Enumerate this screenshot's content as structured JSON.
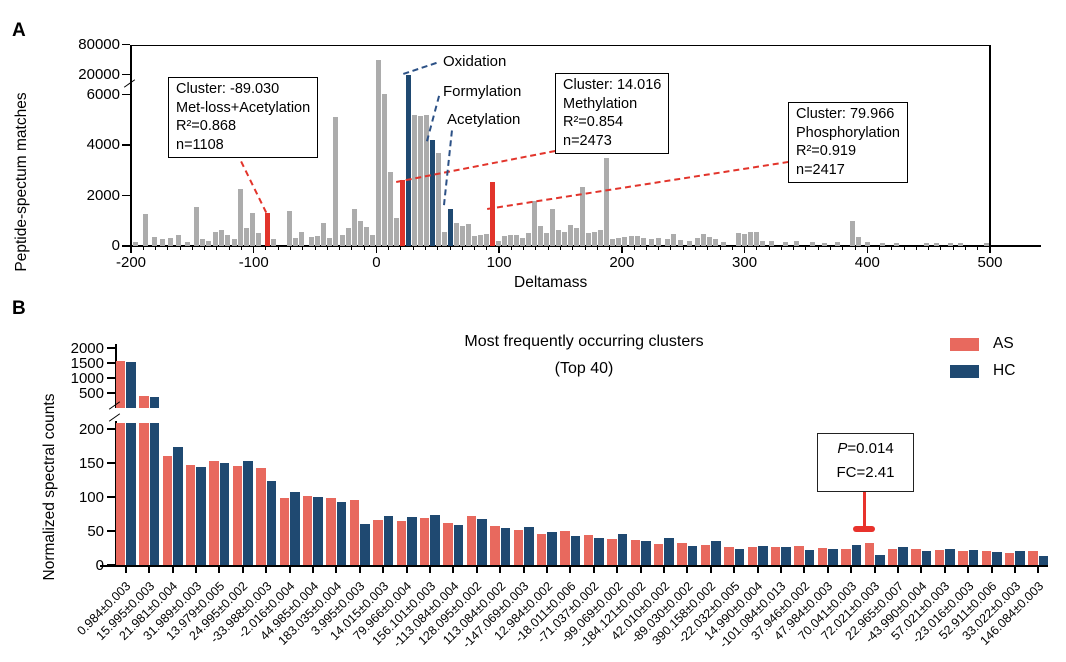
{
  "figure": {
    "panel_a_label": "A",
    "panel_b_label": "B"
  },
  "chart_data": [
    {
      "id": "deltamass-histogram",
      "type": "bar",
      "xlabel": "Deltamass",
      "ylabel": "Peptide-spectum matches",
      "xlim": [
        -200,
        500
      ],
      "xticks": [
        -200,
        -100,
        0,
        100,
        200,
        300,
        400,
        500
      ],
      "yticks": [
        0,
        2000,
        4000,
        6000,
        20000,
        80000
      ],
      "y_axis_break": true,
      "grid": false,
      "bar_color_default": "#ACACAC",
      "bar_colors": {
        "r": "#E2342B",
        "b": "#1F4971"
      },
      "bars": [
        [
          -196,
          150
        ],
        [
          -188,
          1250
        ],
        [
          -181,
          350
        ],
        [
          -174,
          280
        ],
        [
          -168,
          300
        ],
        [
          -161,
          430
        ],
        [
          -154,
          160
        ],
        [
          -147,
          1550
        ],
        [
          -143,
          260
        ],
        [
          -138,
          200
        ],
        [
          -131,
          560
        ],
        [
          -127,
          620
        ],
        [
          -122,
          420
        ],
        [
          -116,
          260
        ],
        [
          -111,
          2250
        ],
        [
          -107,
          700
        ],
        [
          -101,
          1300
        ],
        [
          -97,
          520
        ],
        [
          -89,
          1300,
          "r"
        ],
        [
          -84,
          260
        ],
        [
          -71,
          1400
        ],
        [
          -66,
          300
        ],
        [
          -62,
          560
        ],
        [
          -53,
          350
        ],
        [
          -48,
          380
        ],
        [
          -44,
          900
        ],
        [
          -40,
          300
        ],
        [
          -34,
          5100
        ],
        [
          -28,
          420
        ],
        [
          -24,
          700
        ],
        [
          -18,
          1450
        ],
        [
          -14,
          1000
        ],
        [
          -10,
          760
        ],
        [
          -5,
          420
        ],
        [
          -1,
          49000
        ],
        [
          4,
          6300
        ],
        [
          8,
          2950
        ],
        [
          11,
          1100
        ],
        [
          14,
          2600,
          "r"
        ],
        [
          16,
          20000,
          "b"
        ],
        [
          19,
          5200
        ],
        [
          22,
          5150
        ],
        [
          25,
          5200
        ],
        [
          28,
          4200,
          "b"
        ],
        [
          32,
          3700
        ],
        [
          38,
          560
        ],
        [
          42,
          1450,
          "b"
        ],
        [
          48,
          900
        ],
        [
          52,
          800
        ],
        [
          57,
          880
        ],
        [
          60,
          380
        ],
        [
          66,
          450
        ],
        [
          70,
          480
        ],
        [
          80,
          2550,
          "r"
        ],
        [
          86,
          210
        ],
        [
          90,
          380
        ],
        [
          94,
          430
        ],
        [
          98,
          430
        ],
        [
          102,
          310
        ],
        [
          108,
          520
        ],
        [
          113,
          1800
        ],
        [
          117,
          800
        ],
        [
          121,
          500
        ],
        [
          128,
          1450
        ],
        [
          133,
          650
        ],
        [
          140,
          560
        ],
        [
          146,
          820
        ],
        [
          151,
          700
        ],
        [
          156,
          2350
        ],
        [
          162,
          500
        ],
        [
          168,
          560
        ],
        [
          174,
          620
        ],
        [
          183,
          3500
        ],
        [
          189,
          260
        ],
        [
          197,
          310
        ],
        [
          202,
          360
        ],
        [
          208,
          410
        ],
        [
          213,
          390
        ],
        [
          218,
          310
        ],
        [
          224,
          290
        ],
        [
          230,
          310
        ],
        [
          237,
          260
        ],
        [
          242,
          490
        ],
        [
          248,
          230
        ],
        [
          255,
          210
        ],
        [
          262,
          310
        ],
        [
          266,
          460
        ],
        [
          271,
          340
        ],
        [
          276,
          290
        ],
        [
          283,
          160
        ],
        [
          295,
          530
        ],
        [
          300,
          490
        ],
        [
          304,
          550
        ],
        [
          308,
          540
        ],
        [
          315,
          190
        ],
        [
          322,
          180
        ],
        [
          333,
          150
        ],
        [
          342,
          190
        ],
        [
          355,
          140
        ],
        [
          365,
          120
        ],
        [
          376,
          150
        ],
        [
          388,
          1000
        ],
        [
          393,
          340
        ],
        [
          400,
          150
        ],
        [
          412,
          110
        ],
        [
          424,
          100
        ],
        [
          448,
          120
        ],
        [
          456,
          100
        ],
        [
          468,
          130
        ],
        [
          476,
          120
        ],
        [
          497,
          100
        ]
      ],
      "annotations": {
        "boxes": [
          {
            "lines": [
              "Cluster: -89.030",
              "Met-loss+Acetylation",
              "R²=0.868",
              "n=1108"
            ]
          },
          {
            "lines": [
              "Cluster: 14.016",
              "Methylation",
              "R²=0.854",
              "n=2473"
            ]
          },
          {
            "lines": [
              "Cluster: 79.966",
              "Phosphorylation",
              "R²=0.919",
              "n=2417"
            ]
          }
        ],
        "pointer_labels": [
          "Oxidation",
          "Formylation",
          "Acetylation"
        ]
      }
    },
    {
      "id": "top-clusters",
      "type": "grouped-bar",
      "title": "Most frequently occurring clusters",
      "subtitle": "(Top 40)",
      "ylabel": "Normalized spectral counts",
      "y_axis_break": true,
      "yticks_lower": [
        0,
        50,
        100,
        150,
        200
      ],
      "yticks_upper": [
        500,
        1000,
        1500,
        2000
      ],
      "legend_position": "top-right",
      "categories": [
        "0.984±0.003",
        "15.995±0.003",
        "21.981±0.004",
        "31.989±0.003",
        "13.979±0.005",
        "24.995±0.002",
        "-33.988±0.003",
        "-2.016±0.004",
        "44.985±0.004",
        "183.035±0.004",
        "3.995±0.003",
        "14.015±0.003",
        "79.966±0.004",
        "156.101±0.003",
        "-113.084±0.004",
        "128.095±0.002",
        "113.084±0.002",
        "-147.069±0.003",
        "12.984±0.002",
        "-18.011±0.006",
        "-71.037±0.002",
        "-99.069±0.002",
        "-184.121±0.002",
        "42.010±0.002",
        "-89.030±0.002",
        "390.158±0.002",
        "-22.032±0.005",
        "14.990±0.004",
        "-101.084±0.013",
        "37.946±0.002",
        "47.984±0.003",
        "70.041±0.003",
        "72.021±0.003",
        "22.965±0.007",
        "-43.990±0.004",
        "57.021±0.003",
        "-23.016±0.003",
        "52.911±0.006",
        "33.022±0.003",
        "146.084±0.003"
      ],
      "series": [
        {
          "name": "AS",
          "color": "#E8695E",
          "values": [
            1570,
            395,
            160,
            147,
            153,
            146,
            143,
            98,
            101,
            98,
            95,
            66,
            65,
            69,
            62,
            72,
            58,
            52,
            45,
            50,
            44,
            38,
            37,
            31,
            32,
            30,
            26,
            27,
            26,
            28,
            25,
            24,
            33,
            24,
            23,
            22,
            20,
            21,
            18,
            20
          ]
        },
        {
          "name": "HC",
          "color": "#1F4971",
          "values": [
            1540,
            375,
            173,
            144,
            150,
            153,
            124,
            108,
            100,
            92,
            61,
            72,
            70,
            74,
            59,
            68,
            55,
            56,
            48,
            42,
            40,
            45,
            36,
            39,
            28,
            35,
            24,
            28,
            26,
            22,
            24,
            29,
            14,
            27,
            21,
            24,
            22,
            19,
            21,
            13
          ]
        }
      ],
      "annotations": {
        "stat_box": {
          "p": "P",
          "p_rest": "=0.014",
          "fc": "FC=2.41",
          "target_category": "72.021±0.003"
        }
      }
    }
  ]
}
